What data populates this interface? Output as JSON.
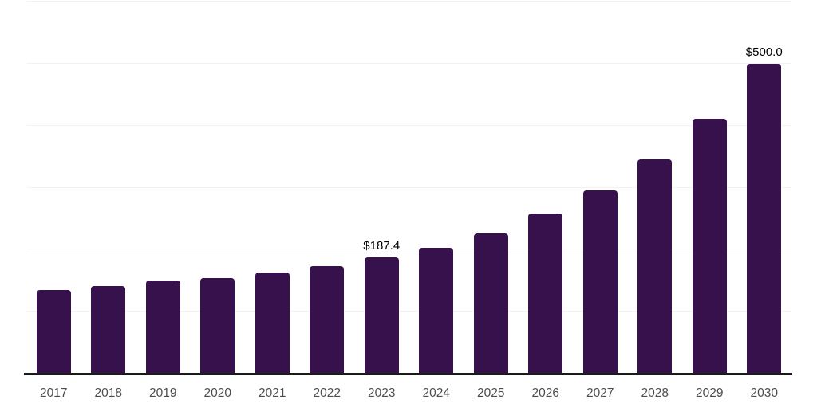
{
  "chart_data": {
    "type": "bar",
    "title": "",
    "xlabel": "",
    "ylabel": "",
    "categories": [
      "2017",
      "2018",
      "2019",
      "2020",
      "2021",
      "2022",
      "2023",
      "2024",
      "2025",
      "2026",
      "2027",
      "2028",
      "2029",
      "2030"
    ],
    "values": [
      135.0,
      141.5,
      150.5,
      154.5,
      163.5,
      173.5,
      187.4,
      203.0,
      226.0,
      258.0,
      296.0,
      346.0,
      411.0,
      500.0
    ],
    "bar_labels": {
      "2023": "$187.4",
      "2030": "$500.0"
    },
    "ylim": [
      0,
      600
    ],
    "gridline_values": [
      0,
      100,
      200,
      300,
      400,
      500,
      600
    ],
    "grid": "horizontal",
    "legend_position": "none"
  },
  "colors": {
    "bar": "#36114b",
    "gridline": "#f2f2f2",
    "axis_line": "#1b1b1b",
    "year_label": "#4d4d4d",
    "value_label": "#000000",
    "background": "#ffffff"
  }
}
